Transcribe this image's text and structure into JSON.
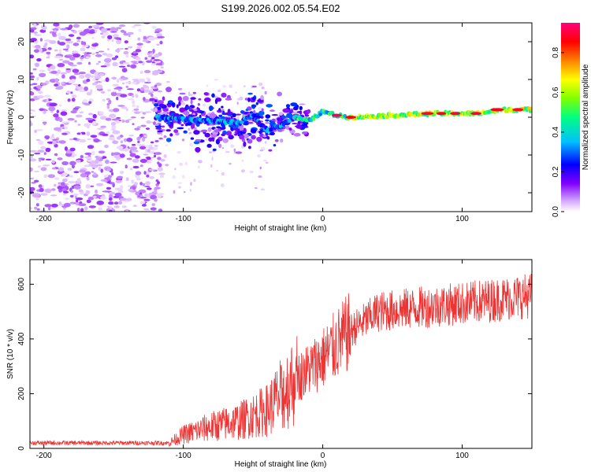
{
  "page": {
    "title": "S199.2026.002.05.54.E02"
  },
  "chart_data": [
    {
      "type": "heatmap",
      "title": "S199.2026.002.05.54.E02",
      "xlabel": "Height of straight line (km)",
      "ylabel": "Frequency (Hz)",
      "xlim": [
        -210,
        150
      ],
      "ylim": [
        -25,
        25
      ],
      "xticks": [
        -200,
        -100,
        0,
        100
      ],
      "xtick_labels": [
        "-200",
        "-100",
        "0",
        "100"
      ],
      "yticks": [
        -20,
        -10,
        0,
        10,
        20
      ],
      "ytick_labels": [
        "-20",
        "-10",
        "0",
        "10",
        "20"
      ],
      "colorbar": {
        "label": "Normalized spectral amplitude",
        "range": [
          0.0,
          0.95
        ],
        "ticks": [
          0.0,
          0.2,
          0.4,
          0.6,
          0.8
        ],
        "tick_labels": [
          "0.0",
          "0.2",
          "0.4",
          "0.6",
          "0.8"
        ],
        "colors": [
          "#ffffff",
          "#d9b3ff",
          "#8000ff",
          "#0000ff",
          "#00c0ff",
          "#00ff80",
          "#80ff00",
          "#ffff00",
          "#ff8000",
          "#ff0000",
          "#ff0080"
        ]
      },
      "signal_track": [
        {
          "x": -120,
          "y": 0.0
        },
        {
          "x": -100,
          "y": -0.5
        },
        {
          "x": -80,
          "y": -1.0
        },
        {
          "x": -60,
          "y": -1.5
        },
        {
          "x": -50,
          "y": 0.5
        },
        {
          "x": -40,
          "y": -3.5
        },
        {
          "x": -30,
          "y": -2.0
        },
        {
          "x": -20,
          "y": 0.0
        },
        {
          "x": -10,
          "y": -1.0
        },
        {
          "x": 0,
          "y": 1.5
        },
        {
          "x": 10,
          "y": 0.5
        },
        {
          "x": 20,
          "y": 0.0
        },
        {
          "x": 50,
          "y": 0.5
        },
        {
          "x": 80,
          "y": 1.0
        },
        {
          "x": 110,
          "y": 1.0
        },
        {
          "x": 130,
          "y": 2.0
        },
        {
          "x": 150,
          "y": 2.0
        }
      ]
    },
    {
      "type": "line",
      "xlabel": "Height of straight line (km)",
      "ylabel": "SNR (10 * v/v)",
      "xlim": [
        -210,
        150
      ],
      "ylim": [
        0,
        690
      ],
      "xticks": [
        -200,
        -100,
        0,
        100
      ],
      "xtick_labels": [
        "-200",
        "-100",
        "0",
        "100"
      ],
      "yticks": [
        0,
        200,
        400,
        600
      ],
      "ytick_labels": [
        "0",
        "200",
        "400",
        "600"
      ],
      "color": "#ee3333",
      "trend": [
        {
          "x": -210,
          "y": 20
        },
        {
          "x": -110,
          "y": 20
        },
        {
          "x": -100,
          "y": 50
        },
        {
          "x": -80,
          "y": 80
        },
        {
          "x": -60,
          "y": 100
        },
        {
          "x": -40,
          "y": 140
        },
        {
          "x": -20,
          "y": 250
        },
        {
          "x": 0,
          "y": 330
        },
        {
          "x": 20,
          "y": 430
        },
        {
          "x": 40,
          "y": 500
        },
        {
          "x": 80,
          "y": 520
        },
        {
          "x": 120,
          "y": 540
        },
        {
          "x": 150,
          "y": 560
        }
      ]
    }
  ]
}
